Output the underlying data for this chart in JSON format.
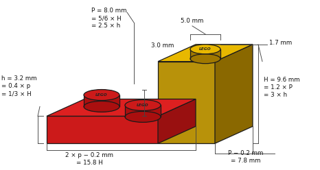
{
  "bg_color": "#ffffff",
  "red_front": "#cc1a1a",
  "red_right": "#991010",
  "red_top": "#dd2020",
  "yellow_front": "#b8920a",
  "yellow_right": "#8a6800",
  "yellow_top": "#e8b800",
  "stud_red_top": "#cc1a1a",
  "stud_red_side": "#aa0f0f",
  "stud_yellow_top": "#e8b800",
  "stud_yellow_side": "#a07800",
  "outline": "#1a1a1a",
  "dim_color": "#333333",
  "ann_color": "#111111",
  "labels": {
    "P": "P = 8.0 mm\n= 5/6 × H\n= 2.5 × h",
    "h": "h = 3.2 mm\n= 0.4 × p\n= 1/3 × H",
    "H": "H = 9.6 mm\n= 1.2 × P\n= 3 × h",
    "top_width": "5.0 mm",
    "stud_height": "1.7 mm",
    "stud_top_h": "3.0 mm",
    "bottom_width": "2 × p − 0.2 mm\n= 15.8 H",
    "bottom_right": "P − 0.2 mm\n= 7.8 mm"
  }
}
